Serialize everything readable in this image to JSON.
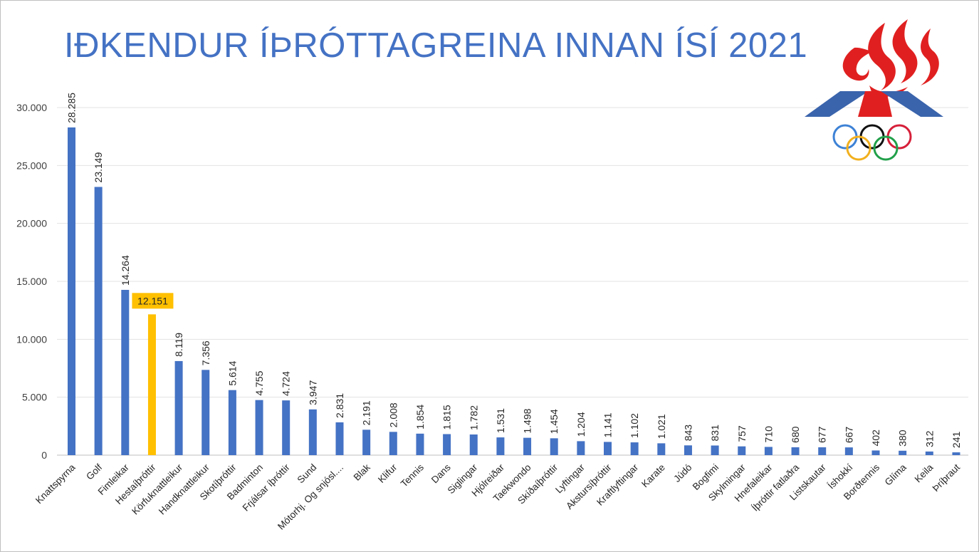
{
  "title": "IÐKENDUR ÍÞRÓTTAGREINA INNAN ÍSÍ 2021",
  "logo": {
    "icon": "isi-olympic-logo-icon"
  },
  "colors": {
    "bar": "#4472c4",
    "highlight": "#ffc000",
    "title": "#4472c4"
  },
  "chart_data": {
    "type": "bar",
    "title": "IÐKENDUR ÍÞRÓTTAGREINA INNAN ÍSÍ 2021",
    "xlabel": "",
    "ylabel": "",
    "ylim": [
      0,
      30000
    ],
    "yticks": [
      0,
      5000,
      10000,
      15000,
      20000,
      25000,
      30000
    ],
    "ytick_labels": [
      "0",
      "5.000",
      "10.000",
      "15.000",
      "20.000",
      "25.000",
      "30.000"
    ],
    "grid": true,
    "legend": "none",
    "highlight_index": 3,
    "categories": [
      "Knattspyrna",
      "Golf",
      "Fimleikar",
      "Hestaíþróttir",
      "Körfuknattleikur",
      "Handknattleikur",
      "Skotíþróttir",
      "Badminton",
      "Frjálsar íþróttir",
      "Sund",
      "Mótorhj. Og snjósl....",
      "Blak",
      "Klifur",
      "Tennis",
      "Dans",
      "Siglingar",
      "Hjólreiðar",
      "Taekwondo",
      "Skíðaíþróttir",
      "Lyftingar",
      "Akstursíþróttir",
      "Kraftlyftingar",
      "Karate",
      "Júdó",
      "Bogfimi",
      "Skylmingar",
      "Hnefaleikar",
      "Íþróttir fatlaðra",
      "Listskautar",
      "Íshokkí",
      "Borðtennis",
      "Glíma",
      "Keila",
      "Þríþraut"
    ],
    "values": [
      28285,
      23149,
      14264,
      12151,
      8119,
      7356,
      5614,
      4755,
      4724,
      3947,
      2831,
      2191,
      2008,
      1854,
      1815,
      1782,
      1531,
      1498,
      1454,
      1204,
      1141,
      1102,
      1021,
      843,
      831,
      757,
      710,
      680,
      677,
      667,
      402,
      380,
      312,
      241
    ],
    "value_labels": [
      "28.285",
      "23.149",
      "14.264",
      "12.151",
      "8.119",
      "7.356",
      "5.614",
      "4.755",
      "4.724",
      "3.947",
      "2.831",
      "2.191",
      "2.008",
      "1.854",
      "1.815",
      "1.782",
      "1.531",
      "1.498",
      "1.454",
      "1.204",
      "1.141",
      "1.102",
      "1.021",
      "843",
      "831",
      "757",
      "710",
      "680",
      "677",
      "667",
      "402",
      "380",
      "312",
      "241"
    ]
  }
}
